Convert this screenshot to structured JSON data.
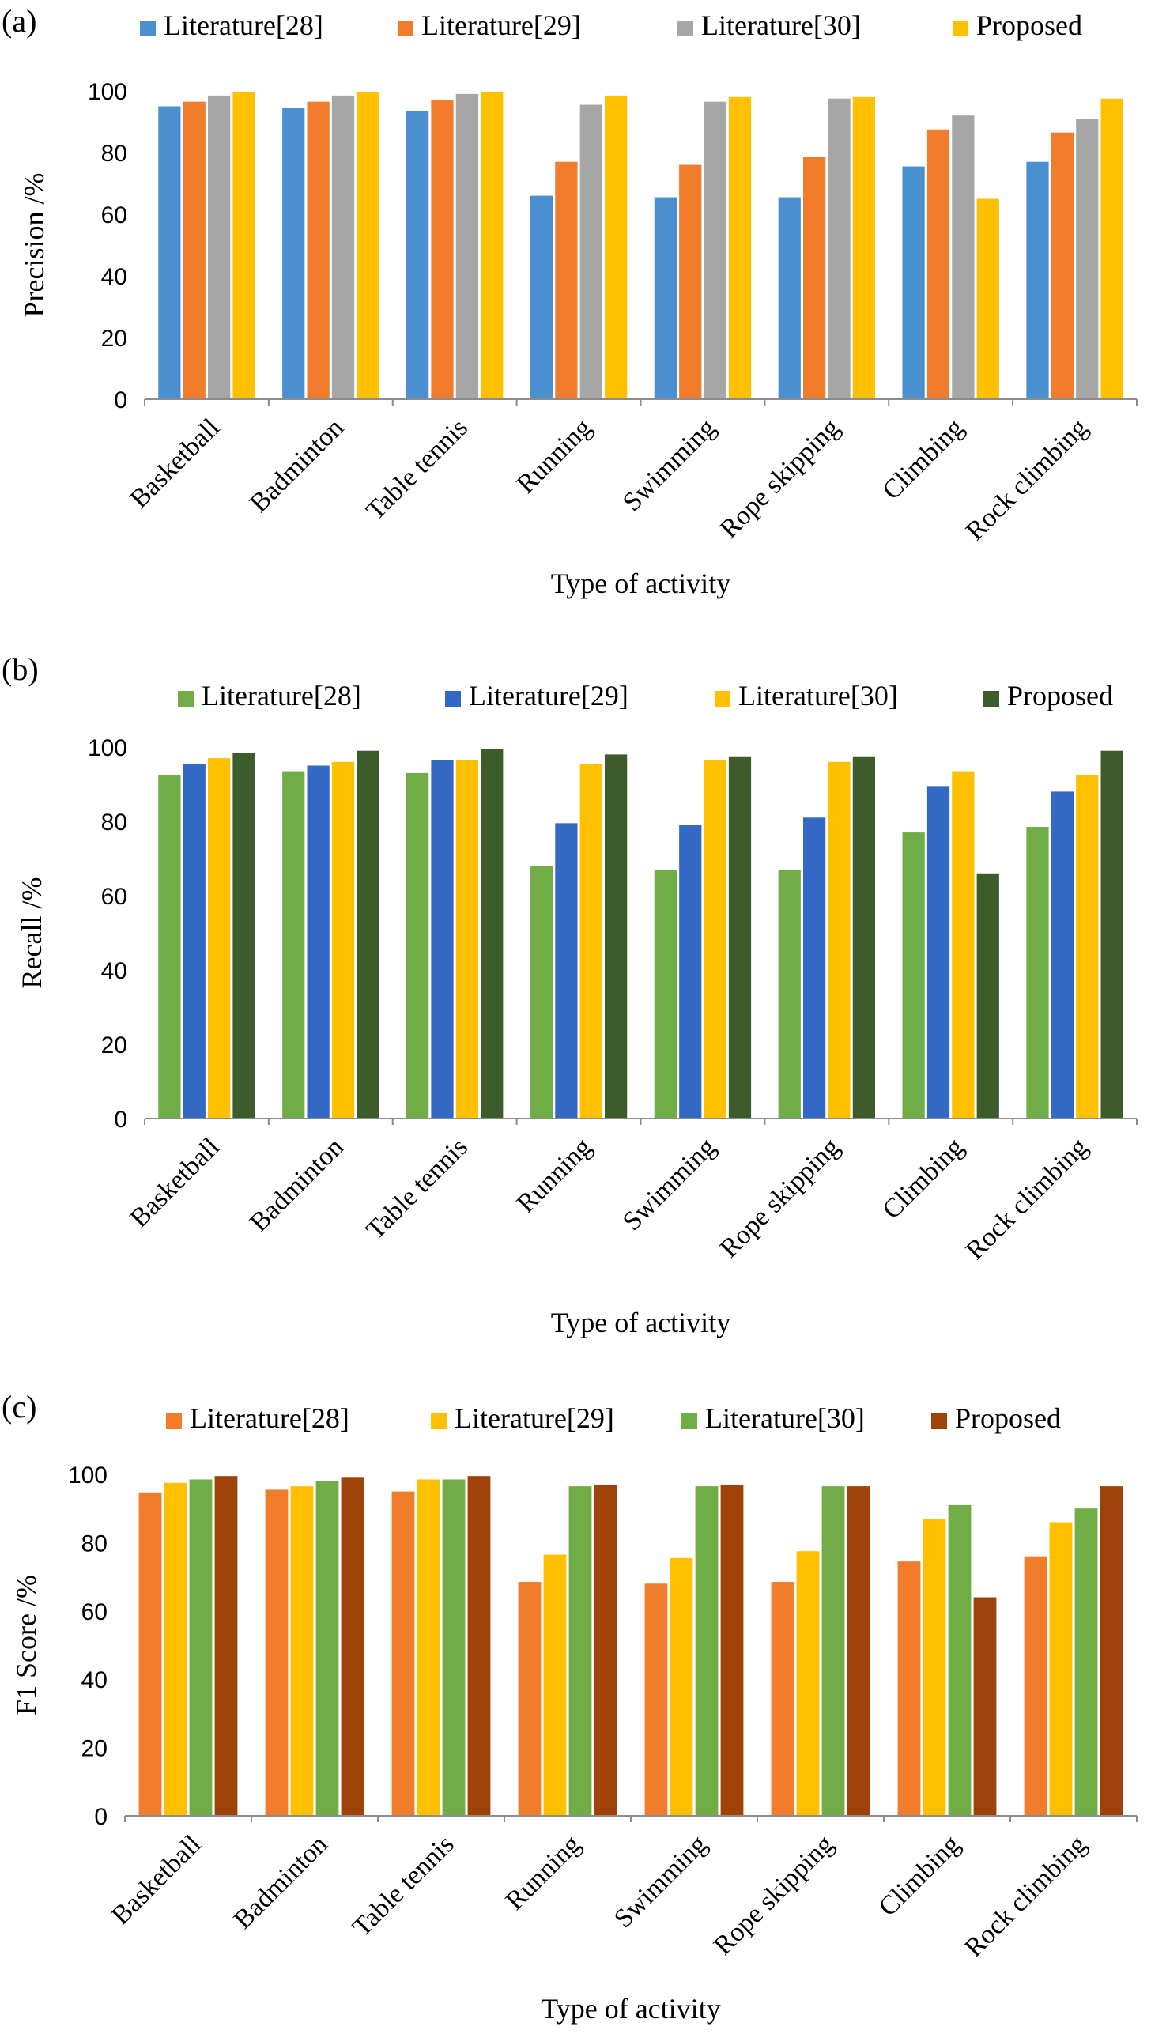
{
  "chart_data": [
    {
      "type": "bar",
      "panel_label": "(a)",
      "title": "",
      "xlabel": "Type of activity",
      "ylabel": "Precision /%",
      "ylim": [
        0,
        100
      ],
      "yticks": [
        0,
        20,
        40,
        60,
        80,
        100
      ],
      "grid": false,
      "legend_position": "top",
      "categories": [
        "Basketball",
        "Badminton",
        "Table tennis",
        "Running",
        "Swimming",
        "Rope skipping",
        "Climbing",
        "Rock climbing"
      ],
      "series": [
        {
          "name": "Literature[28]",
          "color": "#4a90d0",
          "values": [
            95,
            94.5,
            93.5,
            66,
            65.5,
            65.5,
            75.5,
            77
          ]
        },
        {
          "name": "Literature[29]",
          "color": "#f07c2c",
          "values": [
            96.5,
            96.5,
            97,
            77,
            76,
            78.5,
            87.5,
            86.5
          ]
        },
        {
          "name": "Literature[30]",
          "color": "#a6a6a6",
          "values": [
            98.5,
            98.5,
            99,
            95.5,
            96.5,
            97.5,
            92,
            91
          ]
        },
        {
          "name": "Proposed",
          "color": "#ffc000",
          "values": [
            99.5,
            99.5,
            99.5,
            98.5,
            98,
            98,
            65,
            97.5
          ]
        }
      ]
    },
    {
      "type": "bar",
      "panel_label": "(b)",
      "title": "",
      "xlabel": "Type of activity",
      "ylabel": "Recall /%",
      "ylim": [
        0,
        100
      ],
      "yticks": [
        0,
        20,
        40,
        60,
        80,
        100
      ],
      "grid": false,
      "legend_position": "top",
      "categories": [
        "Basketball",
        "Badminton",
        "Table tennis",
        "Running",
        "Swimming",
        "Rope skipping",
        "Climbing",
        "Rock climbing"
      ],
      "series": [
        {
          "name": "Literature[28]",
          "color": "#70ad47",
          "values": [
            92.5,
            93.5,
            93,
            68,
            67,
            67,
            77,
            78.5
          ]
        },
        {
          "name": "Literature[29]",
          "color": "#3368c4",
          "values": [
            95.5,
            95,
            96.5,
            79.5,
            79,
            81,
            89.5,
            88
          ]
        },
        {
          "name": "Literature[30]",
          "color": "#ffc000",
          "values": [
            97,
            96,
            96.5,
            95.5,
            96.5,
            96,
            93.5,
            92.5
          ]
        },
        {
          "name": "Proposed",
          "color": "#3d5c2c",
          "values": [
            98.5,
            99,
            99.5,
            98,
            97.5,
            97.5,
            66,
            99
          ]
        }
      ]
    },
    {
      "type": "bar",
      "panel_label": "(c)",
      "title": "",
      "xlabel": "Type of activity",
      "ylabel": "F1 Score /%",
      "ylim": [
        0,
        100
      ],
      "yticks": [
        0,
        20,
        40,
        60,
        80,
        100
      ],
      "grid": false,
      "legend_position": "top",
      "categories": [
        "Basketball",
        "Badminton",
        "Table tennis",
        "Running",
        "Swimming",
        "Rope skipping",
        "Climbing",
        "Rock climbing"
      ],
      "series": [
        {
          "name": "Literature[28]",
          "color": "#f07c2c",
          "values": [
            94.5,
            95.5,
            95,
            68.5,
            68,
            68.5,
            74.5,
            76
          ]
        },
        {
          "name": "Literature[29]",
          "color": "#ffc000",
          "values": [
            97.5,
            96.5,
            98.5,
            76.5,
            75.5,
            77.5,
            87,
            86
          ]
        },
        {
          "name": "Literature[30]",
          "color": "#70ad47",
          "values": [
            98.5,
            98,
            98.5,
            96.5,
            96.5,
            96.5,
            91,
            90
          ]
        },
        {
          "name": "Proposed",
          "color": "#9e4209",
          "values": [
            99.5,
            99,
            99.5,
            97,
            97,
            96.5,
            64,
            96.5
          ]
        }
      ]
    }
  ]
}
